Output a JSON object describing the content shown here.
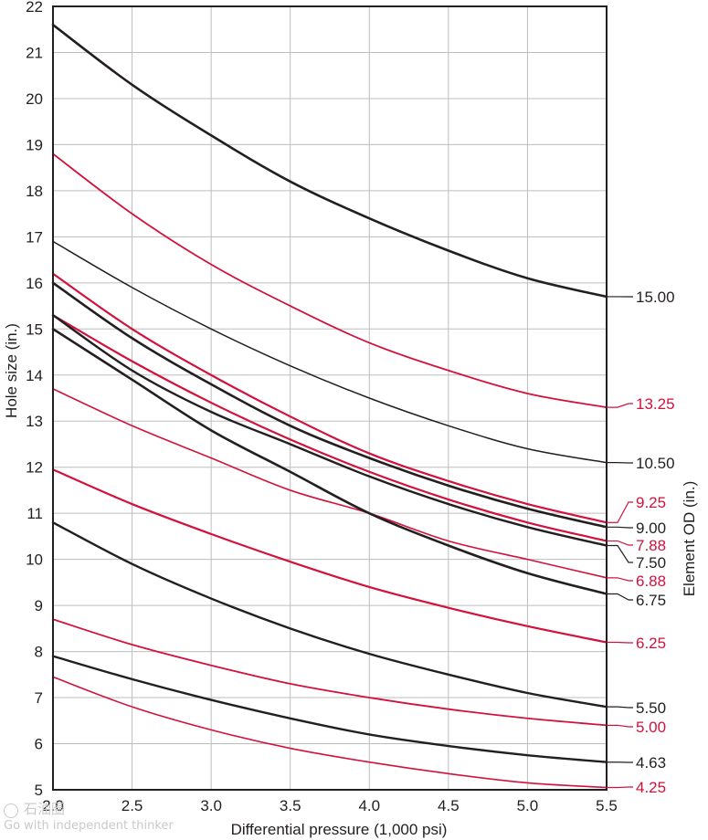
{
  "chart_data": {
    "type": "line",
    "xlabel": "Differential pressure (1,000 psi)",
    "ylabel": "Hole size (in.)",
    "right_label": "Element OD (in.)",
    "xlim": [
      2.0,
      5.5
    ],
    "ylim": [
      5,
      22
    ],
    "x_ticks": [
      "2.0",
      "2.5",
      "3.0",
      "3.5",
      "4.0",
      "4.5",
      "5.0",
      "5.5"
    ],
    "y_ticks": [
      "5",
      "6",
      "7",
      "8",
      "9",
      "10",
      "11",
      "12",
      "13",
      "14",
      "15",
      "16",
      "17",
      "18",
      "19",
      "20",
      "21",
      "22"
    ],
    "grid": true,
    "colors": {
      "black": "#231f20",
      "red": "#d2123c",
      "grid": "#bdbdbd"
    },
    "x": [
      2.0,
      2.5,
      3.0,
      3.5,
      4.0,
      4.5,
      5.0,
      5.5
    ],
    "series": [
      {
        "name": "15.00",
        "color": "black",
        "values": [
          21.6,
          20.3,
          19.2,
          18.2,
          17.4,
          16.7,
          16.1,
          15.7
        ]
      },
      {
        "name": "13.25",
        "color": "red",
        "values": [
          18.8,
          17.5,
          16.4,
          15.5,
          14.7,
          14.1,
          13.6,
          13.3
        ]
      },
      {
        "name": "10.50",
        "color": "black",
        "values": [
          16.9,
          15.9,
          15.0,
          14.2,
          13.5,
          12.9,
          12.4,
          12.1
        ]
      },
      {
        "name": "9.25",
        "color": "red",
        "values": [
          16.2,
          15.0,
          14.0,
          13.1,
          12.3,
          11.7,
          11.2,
          10.8
        ]
      },
      {
        "name": "9.00",
        "color": "black",
        "values": [
          16.0,
          14.8,
          13.8,
          12.9,
          12.2,
          11.6,
          11.1,
          10.7
        ]
      },
      {
        "name": "7.88",
        "color": "red",
        "values": [
          15.3,
          14.3,
          13.4,
          12.6,
          11.9,
          11.3,
          10.8,
          10.4
        ]
      },
      {
        "name": "7.50",
        "color": "black",
        "values": [
          15.3,
          14.1,
          13.2,
          12.5,
          11.8,
          11.2,
          10.7,
          10.3
        ]
      },
      {
        "name": "6.88",
        "color": "red",
        "values": [
          13.7,
          12.9,
          12.2,
          11.5,
          11.0,
          10.4,
          10.0,
          9.6
        ]
      },
      {
        "name": "6.75",
        "color": "black",
        "values": [
          15.0,
          13.9,
          12.8,
          11.9,
          11.0,
          10.3,
          9.7,
          9.25
        ]
      },
      {
        "name": "6.25",
        "color": "red",
        "values": [
          11.95,
          11.2,
          10.55,
          9.95,
          9.4,
          8.95,
          8.55,
          8.2
        ]
      },
      {
        "name": "5.50",
        "color": "black",
        "values": [
          10.8,
          9.9,
          9.15,
          8.5,
          7.95,
          7.5,
          7.1,
          6.8
        ]
      },
      {
        "name": "5.00",
        "color": "red",
        "values": [
          8.7,
          8.15,
          7.7,
          7.3,
          7.0,
          6.75,
          6.55,
          6.4
        ]
      },
      {
        "name": "4.63",
        "color": "black",
        "values": [
          7.9,
          7.4,
          6.95,
          6.55,
          6.2,
          5.95,
          5.75,
          5.6
        ]
      },
      {
        "name": "4.25",
        "color": "red",
        "values": [
          7.45,
          6.8,
          6.3,
          5.9,
          5.6,
          5.35,
          5.15,
          5.05
        ]
      }
    ]
  },
  "watermark": {
    "line1": "石油圈",
    "line2": "Go with independent thinker"
  }
}
